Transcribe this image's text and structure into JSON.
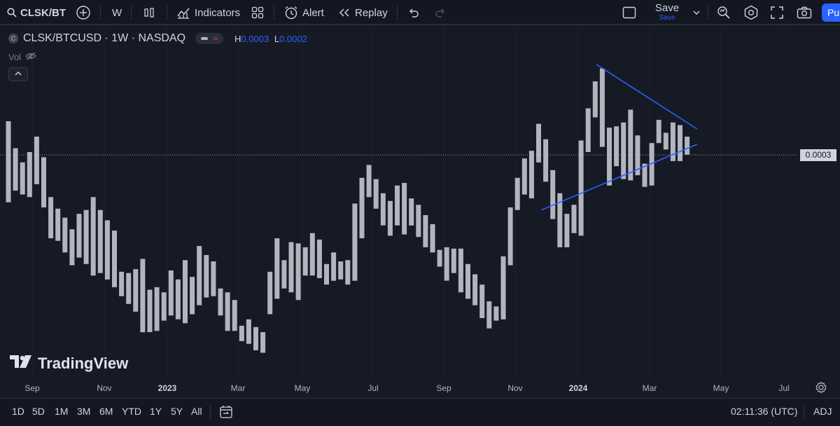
{
  "toolbar": {
    "symbol": "CLSK/BT",
    "interval": "W",
    "indicators_label": "Indicators",
    "alert_label": "Alert",
    "replay_label": "Replay",
    "save_label": "Save",
    "save_sub": "Save",
    "publish_label": "Pu"
  },
  "legend": {
    "badge": "C",
    "title": "CLSK/BTCUSD · 1W · NASDAQ",
    "high_key": "H",
    "high_value": "0.0003",
    "low_key": "L",
    "low_value": "0.0002",
    "vol_label": "Vol"
  },
  "watermark": "TradingView",
  "colors": {
    "background": "#161a25",
    "bar": "#b2b5be",
    "trendline": "#2962ff",
    "accent": "#2962ff"
  },
  "chart_data": {
    "type": "bar",
    "current_price_label": "0.0003",
    "time_labels": [
      {
        "label": "Sep",
        "year": false
      },
      {
        "label": "Nov",
        "year": false
      },
      {
        "label": "2023",
        "year": true
      },
      {
        "label": "Mar",
        "year": false
      },
      {
        "label": "May",
        "year": false
      },
      {
        "label": "Jul",
        "year": false
      },
      {
        "label": "Sep",
        "year": false
      },
      {
        "label": "Nov",
        "year": false
      },
      {
        "label": "2024",
        "year": true
      },
      {
        "label": "Mar",
        "year": false
      },
      {
        "label": "May",
        "year": false
      },
      {
        "label": "Jul",
        "year": false
      }
    ],
    "price_range": [
      0.000118,
      0.000344
    ],
    "bars": [
      [
        0.000295,
        0.000232
      ],
      [
        0.000274,
        0.000241
      ],
      [
        0.000263,
        0.000238
      ],
      [
        0.000271,
        0.000236
      ],
      [
        0.000283,
        0.000246
      ],
      [
        0.000267,
        0.000228
      ],
      [
        0.000236,
        0.000204
      ],
      [
        0.000227,
        0.000202
      ],
      [
        0.00022,
        0.000193
      ],
      [
        0.000211,
        0.000183
      ],
      [
        0.000223,
        0.000189
      ],
      [
        0.000226,
        0.000184
      ],
      [
        0.000236,
        0.000175
      ],
      [
        0.000226,
        0.000177
      ],
      [
        0.000218,
        0.000172
      ],
      [
        0.00021,
        0.000166
      ],
      [
        0.000178,
        0.000159
      ],
      [
        0.000177,
        0.000153
      ],
      [
        0.00018,
        0.000147
      ],
      [
        0.000188,
        0.000131
      ],
      [
        0.000164,
        0.000131
      ],
      [
        0.000166,
        0.000132
      ],
      [
        0.000162,
        0.00014
      ],
      [
        0.000179,
        0.000144
      ],
      [
        0.000172,
        0.000141
      ],
      [
        0.000187,
        0.000138
      ],
      [
        0.000174,
        0.000145
      ],
      [
        0.000198,
        0.000152
      ],
      [
        0.000191,
        0.000158
      ],
      [
        0.000186,
        0.000159
      ],
      [
        0.000165,
        0.000144
      ],
      [
        0.000162,
        0.000132
      ],
      [
        0.000156,
        0.000132
      ],
      [
        0.000136,
        0.000124
      ],
      [
        0.000141,
        0.000122
      ],
      [
        0.000135,
        0.000117
      ],
      [
        0.000131,
        0.000115
      ],
      [
        0.000178,
        0.000145
      ],
      [
        0.000204,
        0.000157
      ],
      [
        0.000187,
        0.000165
      ],
      [
        0.000201,
        0.000162
      ],
      [
        0.0002,
        0.000156
      ],
      [
        0.000197,
        0.000175
      ],
      [
        0.000208,
        0.000175
      ],
      [
        0.000203,
        0.000173
      ],
      [
        0.000184,
        0.000168
      ],
      [
        0.000193,
        0.000171
      ],
      [
        0.000186,
        0.000172
      ],
      [
        0.000187,
        0.000168
      ],
      [
        0.000231,
        0.000171
      ],
      [
        0.000251,
        0.000204
      ],
      [
        0.000261,
        0.000236
      ],
      [
        0.00025,
        0.000227
      ],
      [
        0.000239,
        0.000214
      ],
      [
        0.000233,
        0.000206
      ],
      [
        0.000245,
        0.000214
      ],
      [
        0.000247,
        0.000207
      ],
      [
        0.000235,
        0.000214
      ],
      [
        0.00023,
        0.000205
      ],
      [
        0.000222,
        0.000197
      ],
      [
        0.000215,
        0.000193
      ],
      [
        0.000195,
        0.000182
      ],
      [
        0.000197,
        0.000171
      ],
      [
        0.000196,
        0.000177
      ],
      [
        0.000196,
        0.000162
      ],
      [
        0.000184,
        0.000157
      ],
      [
        0.000176,
        0.000152
      ],
      [
        0.000168,
        0.000142
      ],
      [
        0.000155,
        0.000134
      ],
      [
        0.000151,
        0.00014
      ],
      [
        0.00019,
        0.000141
      ],
      [
        0.000228,
        0.000183
      ],
      [
        0.000251,
        0.000226
      ],
      [
        0.000266,
        0.000238
      ],
      [
        0.000272,
        0.000235
      ],
      [
        0.000293,
        0.000263
      ],
      [
        0.000281,
        0.000248
      ],
      [
        0.000257,
        0.000219
      ],
      [
        0.000239,
        0.000197
      ],
      [
        0.000223,
        0.000197
      ],
      [
        0.00023,
        0.000208
      ],
      [
        0.00028,
        0.000206
      ],
      [
        0.000305,
        0.000271
      ],
      [
        0.000326,
        0.000298
      ],
      [
        0.000336,
        0.000275
      ],
      [
        0.00029,
        0.000245
      ],
      [
        0.000291,
        0.00026
      ],
      [
        0.000294,
        0.00025
      ],
      [
        0.000304,
        0.000249
      ],
      [
        0.000284,
        0.000253
      ],
      [
        0.000262,
        0.000244
      ],
      [
        0.000278,
        0.000245
      ],
      [
        0.000296,
        0.000278
      ],
      [
        0.000286,
        0.000273
      ],
      [
        0.000294,
        0.000264
      ],
      [
        0.000292,
        0.000264
      ],
      [
        0.000283,
        0.000269
      ]
    ],
    "trendlines": [
      {
        "name": "upper",
        "from": {
          "bar": 83.2,
          "price": 0.000339
        },
        "to": {
          "bar": 97.4,
          "price": 0.000289
        }
      },
      {
        "name": "lower",
        "from": {
          "bar": 75.4,
          "price": 0.000226
        },
        "to": {
          "bar": 97.4,
          "price": 0.000277
        }
      }
    ]
  },
  "bottombar": {
    "ranges": [
      "1D",
      "5D",
      "1M",
      "3M",
      "6M",
      "YTD",
      "1Y",
      "5Y",
      "All"
    ],
    "time": "02:11:36 (UTC)",
    "adj": "ADJ"
  }
}
